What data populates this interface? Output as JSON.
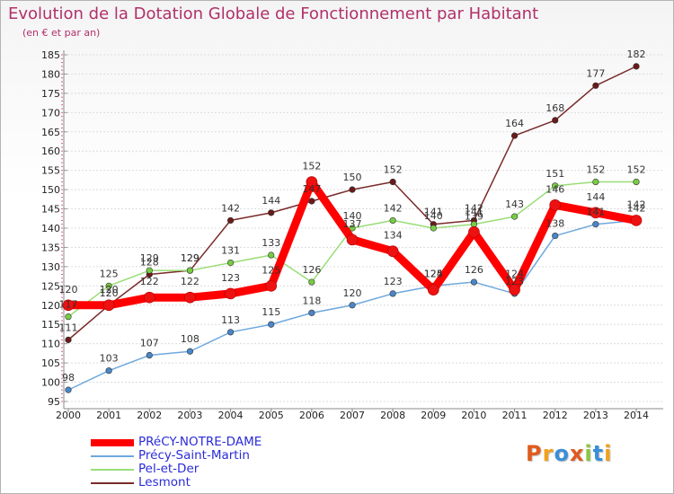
{
  "title": "Evolution de la Dotation Globale de Fonctionnement par Habitant",
  "subtitle": "(en € et par an)",
  "logo": {
    "text": "Proxiti",
    "letters": [
      "P",
      "r",
      "o",
      "x",
      "i",
      "t",
      "i"
    ],
    "colors": [
      "#e05a1e",
      "#f0a11d",
      "#3a8fd8",
      "#e05a1e",
      "#8cc63f",
      "#3a8fd8",
      "#f0a11d"
    ]
  },
  "chart_data": {
    "type": "line",
    "title": "Evolution de la Dotation Globale de Fonctionnement par Habitant",
    "ylabel": "(en € et par an)",
    "xlabel": "",
    "categories": [
      "2000",
      "2001",
      "2002",
      "2003",
      "2004",
      "2005",
      "2006",
      "2007",
      "2008",
      "2009",
      "2010",
      "2011",
      "2012",
      "2013",
      "2014"
    ],
    "ylim": [
      95,
      185
    ],
    "yticks": [
      95,
      100,
      105,
      110,
      115,
      120,
      125,
      130,
      135,
      140,
      145,
      150,
      155,
      160,
      165,
      170,
      175,
      180,
      185
    ],
    "grid": "horizontal",
    "legend_position": "bottom-left",
    "series": [
      {
        "name": "PRéCY-NOTRE-DAME",
        "color": "#ff0000",
        "marker": "#ee1111",
        "values": [
          120,
          120,
          122,
          122,
          123,
          125,
          152,
          137,
          134,
          124,
          139,
          124,
          146,
          144,
          142
        ]
      },
      {
        "name": "Précy-Saint-Martin",
        "color": "#6fa8dc",
        "marker": "#4a86c8",
        "values": [
          98,
          103,
          107,
          108,
          113,
          115,
          118,
          120,
          123,
          125,
          126,
          123,
          138,
          141,
          142
        ]
      },
      {
        "name": "Pel-et-Der",
        "color": "#99dd77",
        "marker": "#77cc44",
        "values": [
          117,
          125,
          129,
          129,
          131,
          133,
          126,
          140,
          142,
          140,
          141,
          143,
          151,
          152,
          152
        ]
      },
      {
        "name": "Lesmont",
        "color": "#7a2a2a",
        "marker": "#6a1a1a",
        "values": [
          111,
          120,
          128,
          129,
          142,
          144,
          147,
          150,
          152,
          141,
          142,
          164,
          168,
          177,
          182
        ]
      }
    ]
  }
}
